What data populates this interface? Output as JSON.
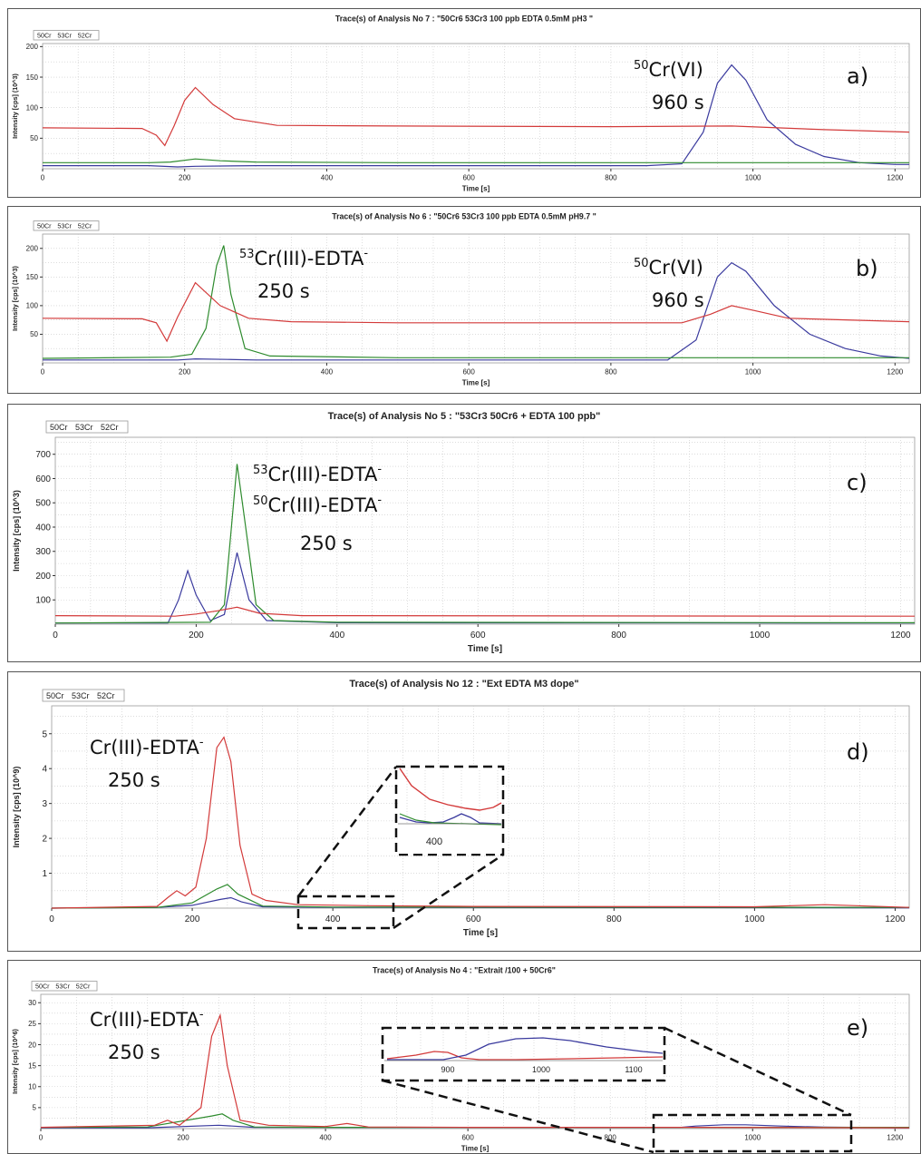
{
  "colors": {
    "cr50": "#3a3a9e",
    "cr53": "#2e8b2e",
    "cr52": "#d33a3a",
    "grid": "#c8c8c8"
  },
  "legend_labels": [
    "50Cr",
    "53Cr",
    "52Cr"
  ],
  "top_legend": {
    "mass1": "50",
    "el1": "Cr",
    "mass2": "53",
    "el2": "Cr",
    "mass3": "52",
    "el3": "Cr",
    "color1": "#3b6fd4",
    "color2": "#3c8a2e",
    "color3": "#d9302a"
  },
  "chart_data": [
    {
      "type": "line",
      "title": "Trace(s) of Analysis No 7 : \"50Cr6 53Cr3 100 ppb EDTA 0.5mM pH3 \"",
      "xlabel": "Time [s]",
      "ylabel": "Intensity [cps] (10^3)",
      "xlim": [
        0,
        1220
      ],
      "ylim": [
        0,
        205
      ],
      "xticks": [
        0,
        200,
        400,
        600,
        800,
        1000,
        1200
      ],
      "yticks": [
        50,
        100,
        150,
        200
      ],
      "panel_label": "a)",
      "annotations": [
        {
          "sup": "50",
          "text": "Cr(VI)",
          "line2": "960 s"
        }
      ],
      "series": [
        {
          "name": "50Cr",
          "x": [
            0,
            150,
            190,
            215,
            300,
            850,
            900,
            930,
            950,
            970,
            990,
            1020,
            1060,
            1100,
            1150,
            1200,
            1220
          ],
          "y": [
            5,
            5,
            3,
            4,
            5,
            5,
            8,
            60,
            140,
            170,
            145,
            80,
            40,
            20,
            10,
            7,
            7
          ]
        },
        {
          "name": "53Cr",
          "x": [
            0,
            150,
            180,
            215,
            250,
            300,
            500,
            1000,
            1220
          ],
          "y": [
            10,
            10,
            11,
            16,
            13,
            11,
            10,
            10,
            10
          ]
        },
        {
          "name": "52Cr",
          "x": [
            0,
            140,
            160,
            172,
            185,
            200,
            215,
            240,
            270,
            330,
            500,
            800,
            970,
            1100,
            1220
          ],
          "y": [
            67,
            66,
            55,
            38,
            70,
            112,
            133,
            105,
            82,
            71,
            70,
            69,
            70,
            64,
            60
          ]
        }
      ]
    },
    {
      "type": "line",
      "title": "Trace(s) of Analysis No 6 : \"50Cr6 53Cr3 100 ppb EDTA 0.5mM pH9.7 \"",
      "xlabel": "Time [s]",
      "ylabel": "Intensity [cps] (10^3)",
      "xlim": [
        0,
        1220
      ],
      "ylim": [
        0,
        225
      ],
      "xticks": [
        0,
        200,
        400,
        600,
        800,
        1000,
        1200
      ],
      "yticks": [
        50,
        100,
        150,
        200
      ],
      "panel_label": "b)",
      "annotations": [
        {
          "sup": "53",
          "text": "Cr(III)-EDTA",
          "tail": "-",
          "line2": "250 s"
        },
        {
          "sup": "50",
          "text": "Cr(VI)",
          "line2": "960 s"
        }
      ],
      "series": [
        {
          "name": "50Cr",
          "x": [
            0,
            190,
            215,
            260,
            300,
            880,
            920,
            950,
            970,
            990,
            1030,
            1080,
            1130,
            1180,
            1220
          ],
          "y": [
            5,
            5,
            7,
            6,
            5,
            5,
            40,
            150,
            175,
            160,
            100,
            50,
            25,
            12,
            8
          ]
        },
        {
          "name": "53Cr",
          "x": [
            0,
            180,
            210,
            230,
            245,
            255,
            265,
            285,
            320,
            500,
            900,
            1220
          ],
          "y": [
            8,
            10,
            15,
            60,
            170,
            205,
            120,
            25,
            12,
            9,
            9,
            9
          ]
        },
        {
          "name": "52Cr",
          "x": [
            0,
            140,
            160,
            175,
            190,
            215,
            250,
            290,
            350,
            500,
            900,
            940,
            970,
            1000,
            1050,
            1220
          ],
          "y": [
            78,
            77,
            70,
            38,
            80,
            140,
            100,
            78,
            72,
            70,
            70,
            85,
            100,
            92,
            78,
            72
          ]
        }
      ]
    },
    {
      "type": "line",
      "title": "Trace(s) of Analysis No 5 : \"53Cr3 50Cr6 + EDTA 100 ppb\"",
      "xlabel": "Time [s]",
      "ylabel": "Intensity [cps] (10^3)",
      "xlim": [
        0,
        1220
      ],
      "ylim": [
        0,
        770
      ],
      "xticks": [
        0,
        200,
        400,
        600,
        800,
        1000,
        1200
      ],
      "yticks": [
        100,
        200,
        300,
        400,
        500,
        600,
        700
      ],
      "panel_label": "c)",
      "annotations": [
        {
          "sup": "53",
          "text": "Cr(III)-EDTA",
          "tail": "-"
        },
        {
          "sup": "50",
          "text": "Cr(III)-EDTA",
          "tail": "-",
          "line2": "250 s"
        }
      ],
      "series": [
        {
          "name": "50Cr",
          "x": [
            0,
            160,
            175,
            188,
            200,
            220,
            240,
            258,
            275,
            300,
            400,
            1220
          ],
          "y": [
            5,
            5,
            100,
            220,
            120,
            15,
            40,
            295,
            100,
            15,
            6,
            5
          ]
        },
        {
          "name": "53Cr",
          "x": [
            0,
            220,
            240,
            250,
            258,
            268,
            285,
            310,
            400,
            1220
          ],
          "y": [
            5,
            8,
            80,
            400,
            660,
            450,
            80,
            15,
            8,
            6
          ]
        },
        {
          "name": "52Cr",
          "x": [
            0,
            170,
            200,
            230,
            258,
            290,
            350,
            1220
          ],
          "y": [
            35,
            33,
            42,
            55,
            70,
            45,
            35,
            33
          ]
        }
      ]
    },
    {
      "type": "line",
      "title": "Trace(s) of Analysis No 12 : \"Ext EDTA M3 dope\"",
      "xlabel": "Time [s]",
      "ylabel": "Intensity [cps] (10^9)",
      "xlim": [
        0,
        1220
      ],
      "ylim": [
        0,
        5.8
      ],
      "xticks": [
        0,
        200,
        400,
        600,
        800,
        1000,
        1200
      ],
      "yticks": [
        1,
        2,
        3,
        4,
        5
      ],
      "panel_label": "d)",
      "annotations": [
        {
          "text": "Cr(III)-EDTA",
          "tail": "-",
          "line2": "250 s"
        }
      ],
      "inset_ticks": [
        "400"
      ],
      "series": [
        {
          "name": "50Cr",
          "x": [
            0,
            150,
            200,
            240,
            255,
            270,
            300,
            400,
            1220
          ],
          "y": [
            0,
            0.02,
            0.08,
            0.25,
            0.3,
            0.18,
            0.04,
            0.02,
            0.01
          ]
        },
        {
          "name": "53Cr",
          "x": [
            0,
            150,
            200,
            235,
            250,
            265,
            300,
            400,
            1220
          ],
          "y": [
            0,
            0.02,
            0.15,
            0.55,
            0.68,
            0.4,
            0.06,
            0.03,
            0.02
          ]
        },
        {
          "name": "52Cr",
          "x": [
            0,
            150,
            165,
            178,
            190,
            205,
            220,
            235,
            245,
            255,
            268,
            285,
            305,
            350,
            450,
            600,
            1000,
            1100,
            1220
          ],
          "y": [
            0,
            0.05,
            0.3,
            0.5,
            0.35,
            0.6,
            2.0,
            4.6,
            4.9,
            4.2,
            1.8,
            0.4,
            0.22,
            0.1,
            0.07,
            0.05,
            0.04,
            0.1,
            0.02
          ]
        }
      ]
    },
    {
      "type": "line",
      "title": "Trace(s) of Analysis No 4 : \"Extrait /100 + 50Cr6\"",
      "xlabel": "Time [s]",
      "ylabel": "Intensity [cps] (10^6)",
      "xlim": [
        0,
        1220
      ],
      "ylim": [
        0,
        32
      ],
      "xticks": [
        0,
        200,
        400,
        600,
        800,
        1000,
        1200
      ],
      "yticks": [
        5,
        10,
        15,
        20,
        25,
        30
      ],
      "panel_label": "e)",
      "annotations": [
        {
          "text": "Cr(III)-EDTA",
          "tail": "-",
          "line2": "250 s"
        }
      ],
      "inset_ticks": [
        "900",
        "1000",
        "1100"
      ],
      "series": [
        {
          "name": "50Cr",
          "x": [
            0,
            150,
            250,
            300,
            900,
            920,
            960,
            990,
            1040,
            1100,
            1220
          ],
          "y": [
            0.2,
            0.2,
            0.8,
            0.3,
            0.3,
            0.6,
            0.9,
            0.9,
            0.6,
            0.35,
            0.2
          ]
        },
        {
          "name": "53Cr",
          "x": [
            0,
            150,
            240,
            255,
            270,
            300,
            400,
            1220
          ],
          "y": [
            0.3,
            0.4,
            3.0,
            3.5,
            2.0,
            0.4,
            0.3,
            0.3
          ]
        },
        {
          "name": "52Cr",
          "x": [
            0,
            160,
            178,
            195,
            225,
            240,
            252,
            262,
            280,
            320,
            400,
            430,
            460,
            600,
            900,
            1220
          ],
          "y": [
            0.3,
            0.8,
            2.0,
            0.8,
            5,
            22,
            27,
            15,
            2,
            0.8,
            0.5,
            1.2,
            0.4,
            0.3,
            0.3,
            0.2
          ]
        }
      ]
    }
  ]
}
